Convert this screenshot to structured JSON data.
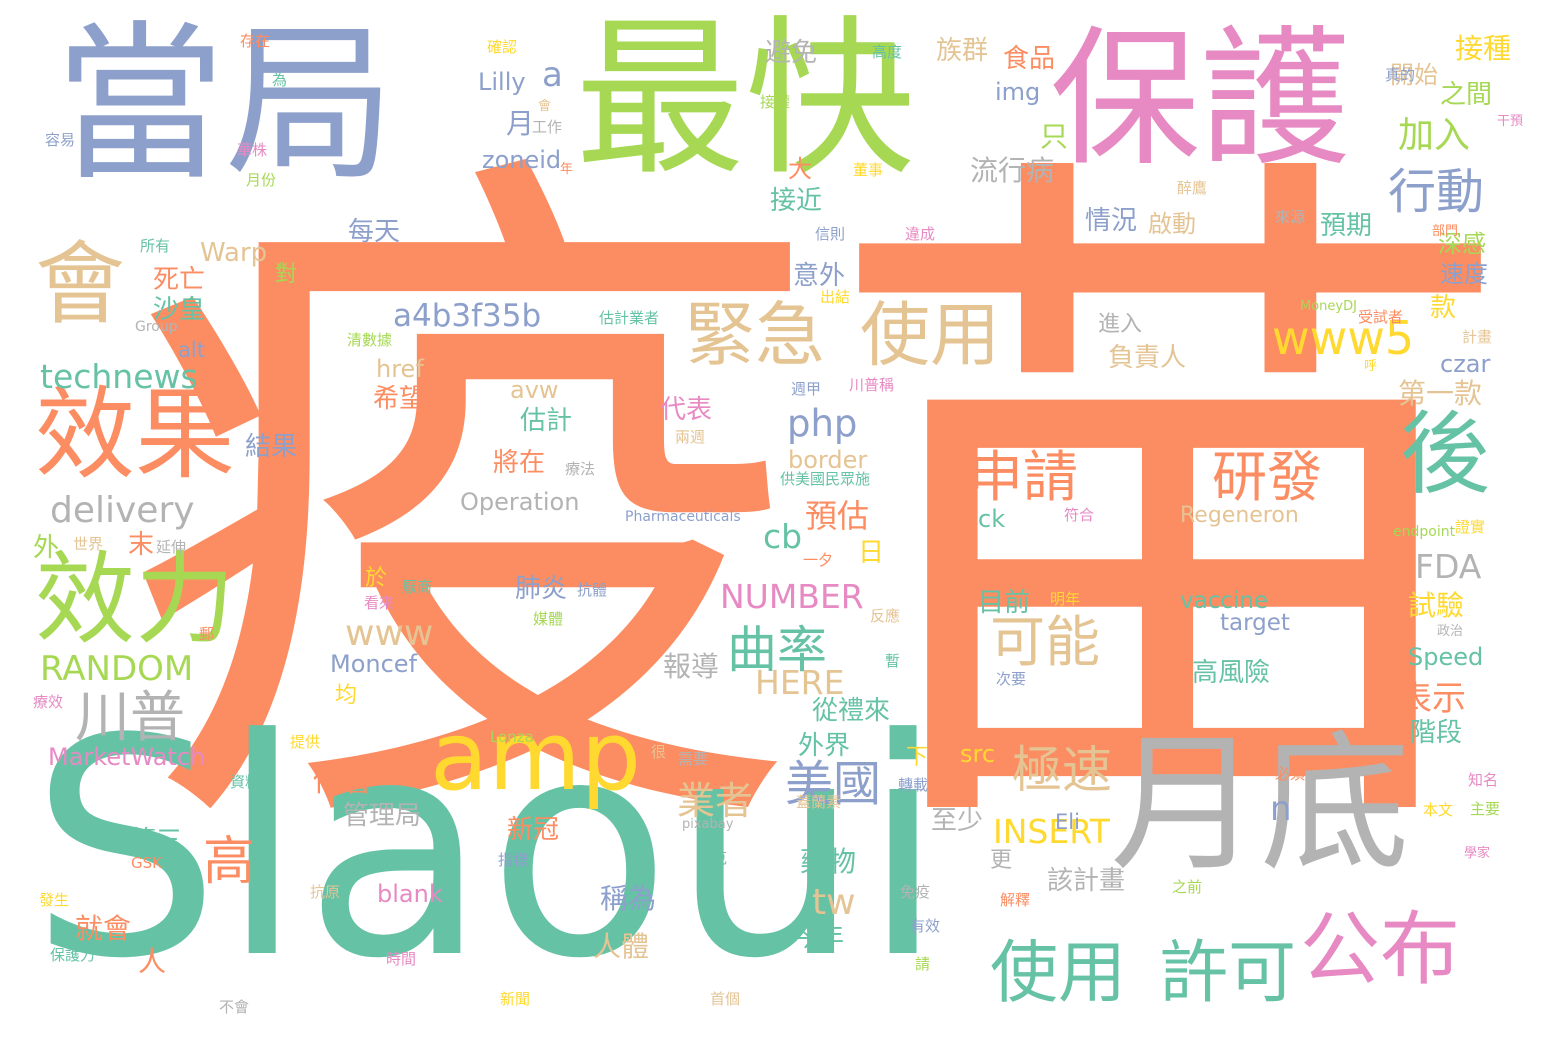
{
  "palette": {
    "orange": "#fc8d62",
    "teal": "#66c2a5",
    "blue": "#8da0cb",
    "pink": "#e78ac3",
    "green": "#a6d854",
    "yellow": "#ffd92f",
    "tan": "#e5c494",
    "gray": "#b3b3b3"
  },
  "words": [
    {
      "text": "疫苗",
      "color": "orange"
    },
    {
      "text": "Slaoui",
      "color": "teal"
    },
    {
      "text": "當局",
      "color": "blue"
    },
    {
      "text": "最快",
      "color": "green"
    },
    {
      "text": "保護",
      "color": "pink"
    },
    {
      "text": "月底",
      "color": "gray"
    },
    {
      "text": "會",
      "color": "tan"
    },
    {
      "text": "效果",
      "color": "orange"
    },
    {
      "text": "效力",
      "color": "green"
    },
    {
      "text": "amp",
      "color": "yellow"
    },
    {
      "text": "緊急",
      "color": "tan"
    },
    {
      "text": "使用",
      "color": "tan"
    },
    {
      "text": "後",
      "color": "teal"
    },
    {
      "text": "公布",
      "color": "pink"
    },
    {
      "text": "使用",
      "color": "teal"
    },
    {
      "text": "許可",
      "color": "teal"
    },
    {
      "text": "申請",
      "color": "orange"
    },
    {
      "text": "研發",
      "color": "orange"
    },
    {
      "text": "可能",
      "color": "tan"
    },
    {
      "text": "曲率",
      "color": "teal"
    },
    {
      "text": "極速",
      "color": "tan"
    },
    {
      "text": "美國",
      "color": "blue"
    },
    {
      "text": "川普",
      "color": "gray"
    },
    {
      "text": "行動",
      "color": "blue"
    },
    {
      "text": "www5",
      "color": "yellow"
    },
    {
      "text": "technews",
      "color": "teal"
    },
    {
      "text": "delivery",
      "color": "gray"
    },
    {
      "text": "RANDOM",
      "color": "green"
    },
    {
      "text": "a4b3f35b",
      "color": "blue"
    },
    {
      "text": "php",
      "color": "blue"
    },
    {
      "text": "NUMBER",
      "color": "pink"
    },
    {
      "text": "www",
      "color": "tan"
    },
    {
      "text": "HERE",
      "color": "tan"
    },
    {
      "text": "INSERT",
      "color": "yellow"
    },
    {
      "text": "FDA",
      "color": "gray"
    },
    {
      "text": "Operation",
      "color": "gray"
    },
    {
      "text": "Regeneron",
      "color": "tan"
    },
    {
      "text": "vaccine",
      "color": "teal"
    },
    {
      "text": "target",
      "color": "blue"
    },
    {
      "text": "Speed",
      "color": "teal"
    },
    {
      "text": "Warp",
      "color": "tan"
    },
    {
      "text": "Moncef",
      "color": "blue"
    },
    {
      "text": "MarketWatch",
      "color": "pink"
    },
    {
      "text": "zoneid",
      "color": "blue"
    },
    {
      "text": "Lilly",
      "color": "blue"
    },
    {
      "text": "img",
      "color": "blue"
    },
    {
      "text": "href",
      "color": "tan"
    },
    {
      "text": "border",
      "color": "tan"
    },
    {
      "text": "avw",
      "color": "tan"
    },
    {
      "text": "alt",
      "color": "blue"
    },
    {
      "text": "a",
      "color": "blue"
    },
    {
      "text": "n",
      "color": "blue"
    },
    {
      "text": "tw",
      "color": "tan"
    },
    {
      "text": "cb",
      "color": "teal"
    },
    {
      "text": "ck",
      "color": "teal"
    },
    {
      "text": "blank",
      "color": "pink"
    },
    {
      "text": "src",
      "color": "yellow"
    },
    {
      "text": "czar",
      "color": "blue"
    },
    {
      "text": "Eli",
      "color": "blue"
    },
    {
      "text": "高",
      "color": "orange"
    },
    {
      "text": "月",
      "color": "blue"
    },
    {
      "text": "加入",
      "color": "green"
    },
    {
      "text": "接種",
      "color": "yellow"
    },
    {
      "text": "之間",
      "color": "green"
    },
    {
      "text": "開始",
      "color": "tan"
    },
    {
      "text": "深感",
      "color": "green"
    },
    {
      "text": "速度",
      "color": "blue"
    },
    {
      "text": "預期",
      "color": "teal"
    },
    {
      "text": "款",
      "color": "yellow"
    },
    {
      "text": "第一款",
      "color": "tan"
    },
    {
      "text": "表示",
      "color": "orange"
    },
    {
      "text": "階段",
      "color": "teal"
    },
    {
      "text": "試驗",
      "color": "yellow"
    },
    {
      "text": "高風險",
      "color": "teal"
    },
    {
      "text": "負責人",
      "color": "tan"
    },
    {
      "text": "進入",
      "color": "gray"
    },
    {
      "text": "情況",
      "color": "blue"
    },
    {
      "text": "啟動",
      "color": "tan"
    },
    {
      "text": "流行病",
      "color": "gray"
    },
    {
      "text": "族群",
      "color": "tan"
    },
    {
      "text": "食品",
      "color": "orange"
    },
    {
      "text": "只",
      "color": "green"
    },
    {
      "text": "避免",
      "color": "gray"
    },
    {
      "text": "接近",
      "color": "teal"
    },
    {
      "text": "大",
      "color": "orange"
    },
    {
      "text": "每天",
      "color": "blue"
    },
    {
      "text": "意外",
      "color": "blue"
    },
    {
      "text": "死亡",
      "color": "orange"
    },
    {
      "text": "沙皇",
      "color": "teal"
    },
    {
      "text": "對",
      "color": "green"
    },
    {
      "text": "希望",
      "color": "orange"
    },
    {
      "text": "結果",
      "color": "blue"
    },
    {
      "text": "估計",
      "color": "teal"
    },
    {
      "text": "代表",
      "color": "pink"
    },
    {
      "text": "將在",
      "color": "orange"
    },
    {
      "text": "預估",
      "color": "orange"
    },
    {
      "text": "末",
      "color": "orange"
    },
    {
      "text": "外",
      "color": "green"
    },
    {
      "text": "日",
      "color": "yellow"
    },
    {
      "text": "肺炎",
      "color": "blue"
    },
    {
      "text": "於",
      "color": "yellow"
    },
    {
      "text": "均",
      "color": "yellow"
    },
    {
      "text": "報導",
      "color": "gray"
    },
    {
      "text": "從禮來",
      "color": "teal"
    },
    {
      "text": "外界",
      "color": "teal"
    },
    {
      "text": "下",
      "color": "yellow"
    },
    {
      "text": "他會",
      "color": "orange"
    },
    {
      "text": "業者",
      "color": "tan"
    },
    {
      "text": "管理局",
      "color": "gray"
    },
    {
      "text": "新冠",
      "color": "orange"
    },
    {
      "text": "第三",
      "color": "teal"
    },
    {
      "text": "藥物",
      "color": "teal"
    },
    {
      "text": "至少",
      "color": "gray"
    },
    {
      "text": "更",
      "color": "gray"
    },
    {
      "text": "該計畫",
      "color": "gray"
    },
    {
      "text": "稱為",
      "color": "blue"
    },
    {
      "text": "就會",
      "color": "orange"
    },
    {
      "text": "人",
      "color": "orange"
    },
    {
      "text": "人體",
      "color": "tan"
    },
    {
      "text": "今年",
      "color": "teal"
    },
    {
      "text": "目前",
      "color": "teal"
    }
  ],
  "small_words": [
    "存在",
    "為",
    "容易",
    "華株",
    "月份",
    "確認",
    "會",
    "工作",
    "年",
    "高度",
    "真的",
    "干預",
    "接權",
    "董事",
    "醉鷹",
    "來源",
    "部門",
    "所有",
    "信則",
    "違成",
    "MoneyDJ",
    "出結",
    "計畫",
    "Group",
    "受試者",
    "估計業者",
    "週甲",
    "川普稱",
    "清數據",
    "呼",
    "兩週",
    "療法",
    "Moderna",
    "供美國民眾施",
    "Pharmaceuticals",
    "符合",
    "endpoint",
    "證實",
    "世界",
    "延伸",
    "一夕",
    "厭商",
    "抗體",
    "看來",
    "媒體",
    "明年",
    "反應",
    "政治",
    "郵",
    "暫",
    "次要",
    "療效",
    "Lonza",
    "提供",
    "很",
    "需要",
    "必須",
    "資料",
    "轉載",
    "知名",
    "主要",
    "本文",
    "蓋蘭素",
    "pixabay",
    "GSK",
    "史克",
    "指標",
    "學家",
    "之前",
    "發生",
    "抗原",
    "免疫",
    "解釋",
    "保護力",
    "有效",
    "時間",
    "請",
    "新聞",
    "首個",
    "不會"
  ]
}
